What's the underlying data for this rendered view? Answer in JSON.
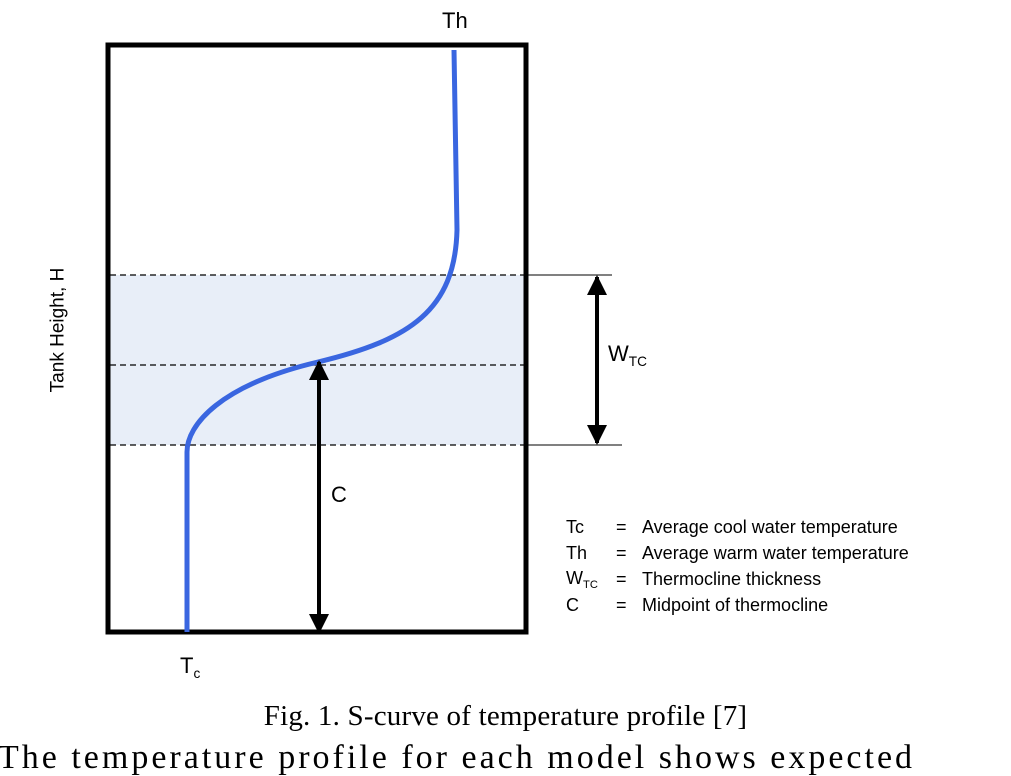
{
  "labels": {
    "top": "Th",
    "bottom_main": "T",
    "bottom_sub": "c",
    "midpoint": "C",
    "thickness_main": "W",
    "thickness_sub": "TC",
    "yaxis": "Tank Height, H"
  },
  "legend": [
    {
      "symbol": "Tc",
      "symbol_sub": "",
      "eq": "=",
      "text": "Average cool water temperature"
    },
    {
      "symbol": "Th",
      "symbol_sub": "",
      "eq": "=",
      "text": "Average warm water temperature"
    },
    {
      "symbol": "W",
      "symbol_sub": "TC",
      "eq": "=",
      "text": "Thermocline thickness"
    },
    {
      "symbol": "C",
      "symbol_sub": "",
      "eq": "=",
      "text": "Midpoint  of thermocline"
    }
  ],
  "caption": "Fig. 1. S-curve of temperature profile [7]",
  "cut_text": "The temperature profile for each model shows expected",
  "colors": {
    "curve": "#3a66e0",
    "band": "#e8eef8",
    "frame": "#000000"
  }
}
